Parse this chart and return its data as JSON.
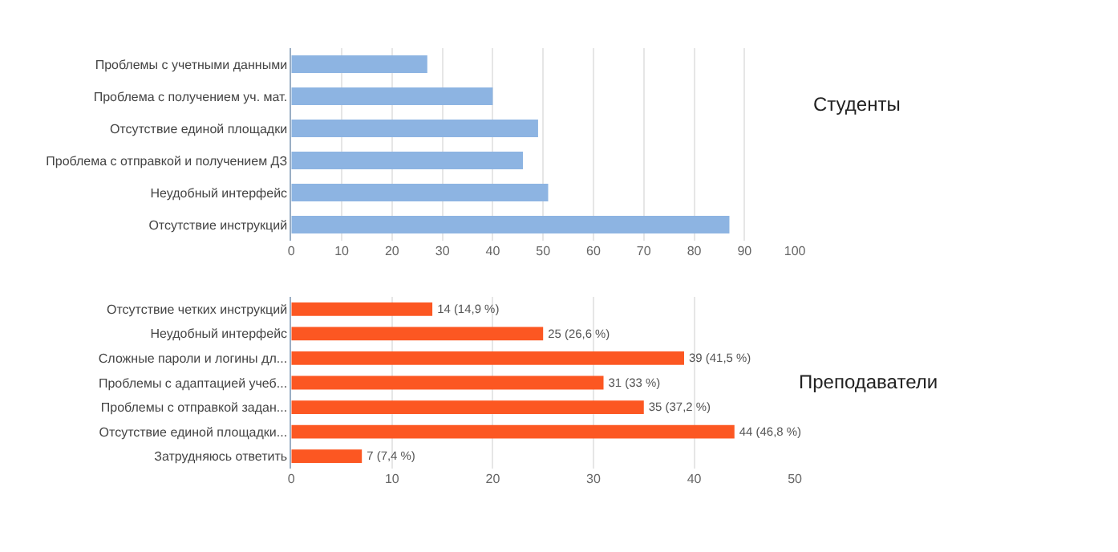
{
  "chart_data": [
    {
      "type": "bar",
      "orientation": "horizontal",
      "title": "Студенты",
      "categories": [
        "Проблемы с учетными данными",
        "Проблема с получением уч. мат.",
        "Отсутствие единой площадки",
        "Проблема с отправкой и получением ДЗ",
        "Неудобный интерфейс",
        "Отсутствие инструкций"
      ],
      "values": [
        27,
        40,
        49,
        46,
        51,
        87
      ],
      "color": "#8db4e2",
      "xlim": [
        0,
        100
      ],
      "xticks": [
        0,
        10,
        20,
        30,
        40,
        50,
        60,
        70,
        80,
        90,
        100
      ],
      "grid": "x",
      "legend": false
    },
    {
      "type": "bar",
      "orientation": "horizontal",
      "title": "Преподаватели",
      "categories": [
        "Отсутствие четких инструкций",
        "Неудобный интерфейс",
        "Сложные пароли и логины дл...",
        "Проблемы с адаптацией учеб...",
        "Проблемы с отправкой задан...",
        "Отсутствие единой площадки...",
        "Затрудняюсь ответить"
      ],
      "values": [
        14,
        25,
        39,
        31,
        35,
        44,
        7
      ],
      "color": "#fc5722",
      "value_labels": [
        "14 (14,9 %)",
        "25 (26,6 %)",
        "39 (41,5 %)",
        "31 (33 %)",
        "35 (37,2 %)",
        "44 (46,8 %)",
        "7 (7,4 %)"
      ],
      "xlim": [
        0,
        50
      ],
      "xticks": [
        0,
        10,
        20,
        30,
        40,
        50
      ],
      "grid": "x",
      "legend": false
    }
  ]
}
